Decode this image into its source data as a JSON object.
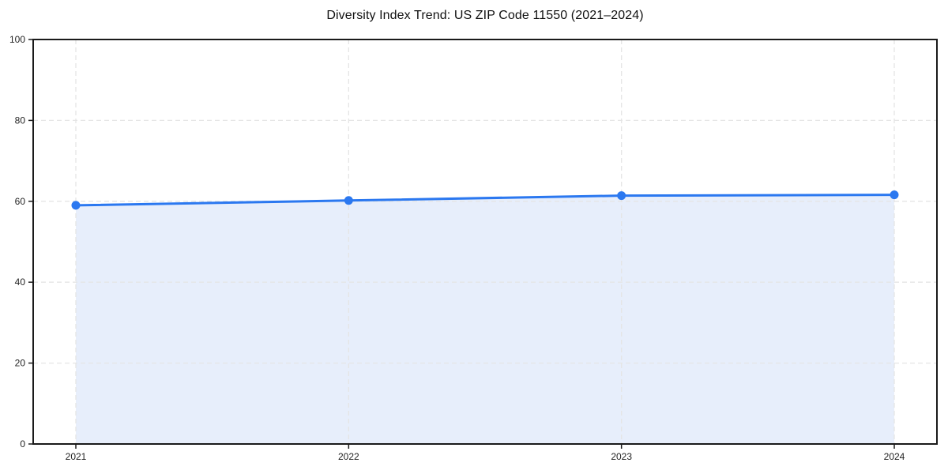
{
  "page": {
    "background": "#ffffff"
  },
  "chart_data": {
    "type": "area",
    "title": "Diversity Index Trend: US ZIP Code 11550 (2021–2024)",
    "categories": [
      "2021",
      "2022",
      "2023",
      "2024"
    ],
    "series": [
      {
        "name": "Diversity Index",
        "values": [
          59.0,
          60.2,
          61.4,
          61.6
        ]
      }
    ],
    "xlabel": "",
    "ylabel": "",
    "ylim": [
      0,
      100
    ],
    "yticks": [
      0,
      20,
      40,
      60,
      80,
      100
    ],
    "grid": true,
    "grid_style": "dashed",
    "legend": "none",
    "marker": "circle",
    "colors": {
      "line": "#2b78f0",
      "marker": "#2b78f0",
      "area_fill": "#e7eefb",
      "grid": "#e5e5e5",
      "spine": "#1a1a1a",
      "tick_text": "#1f1f1f",
      "title_text": "#111111"
    }
  }
}
